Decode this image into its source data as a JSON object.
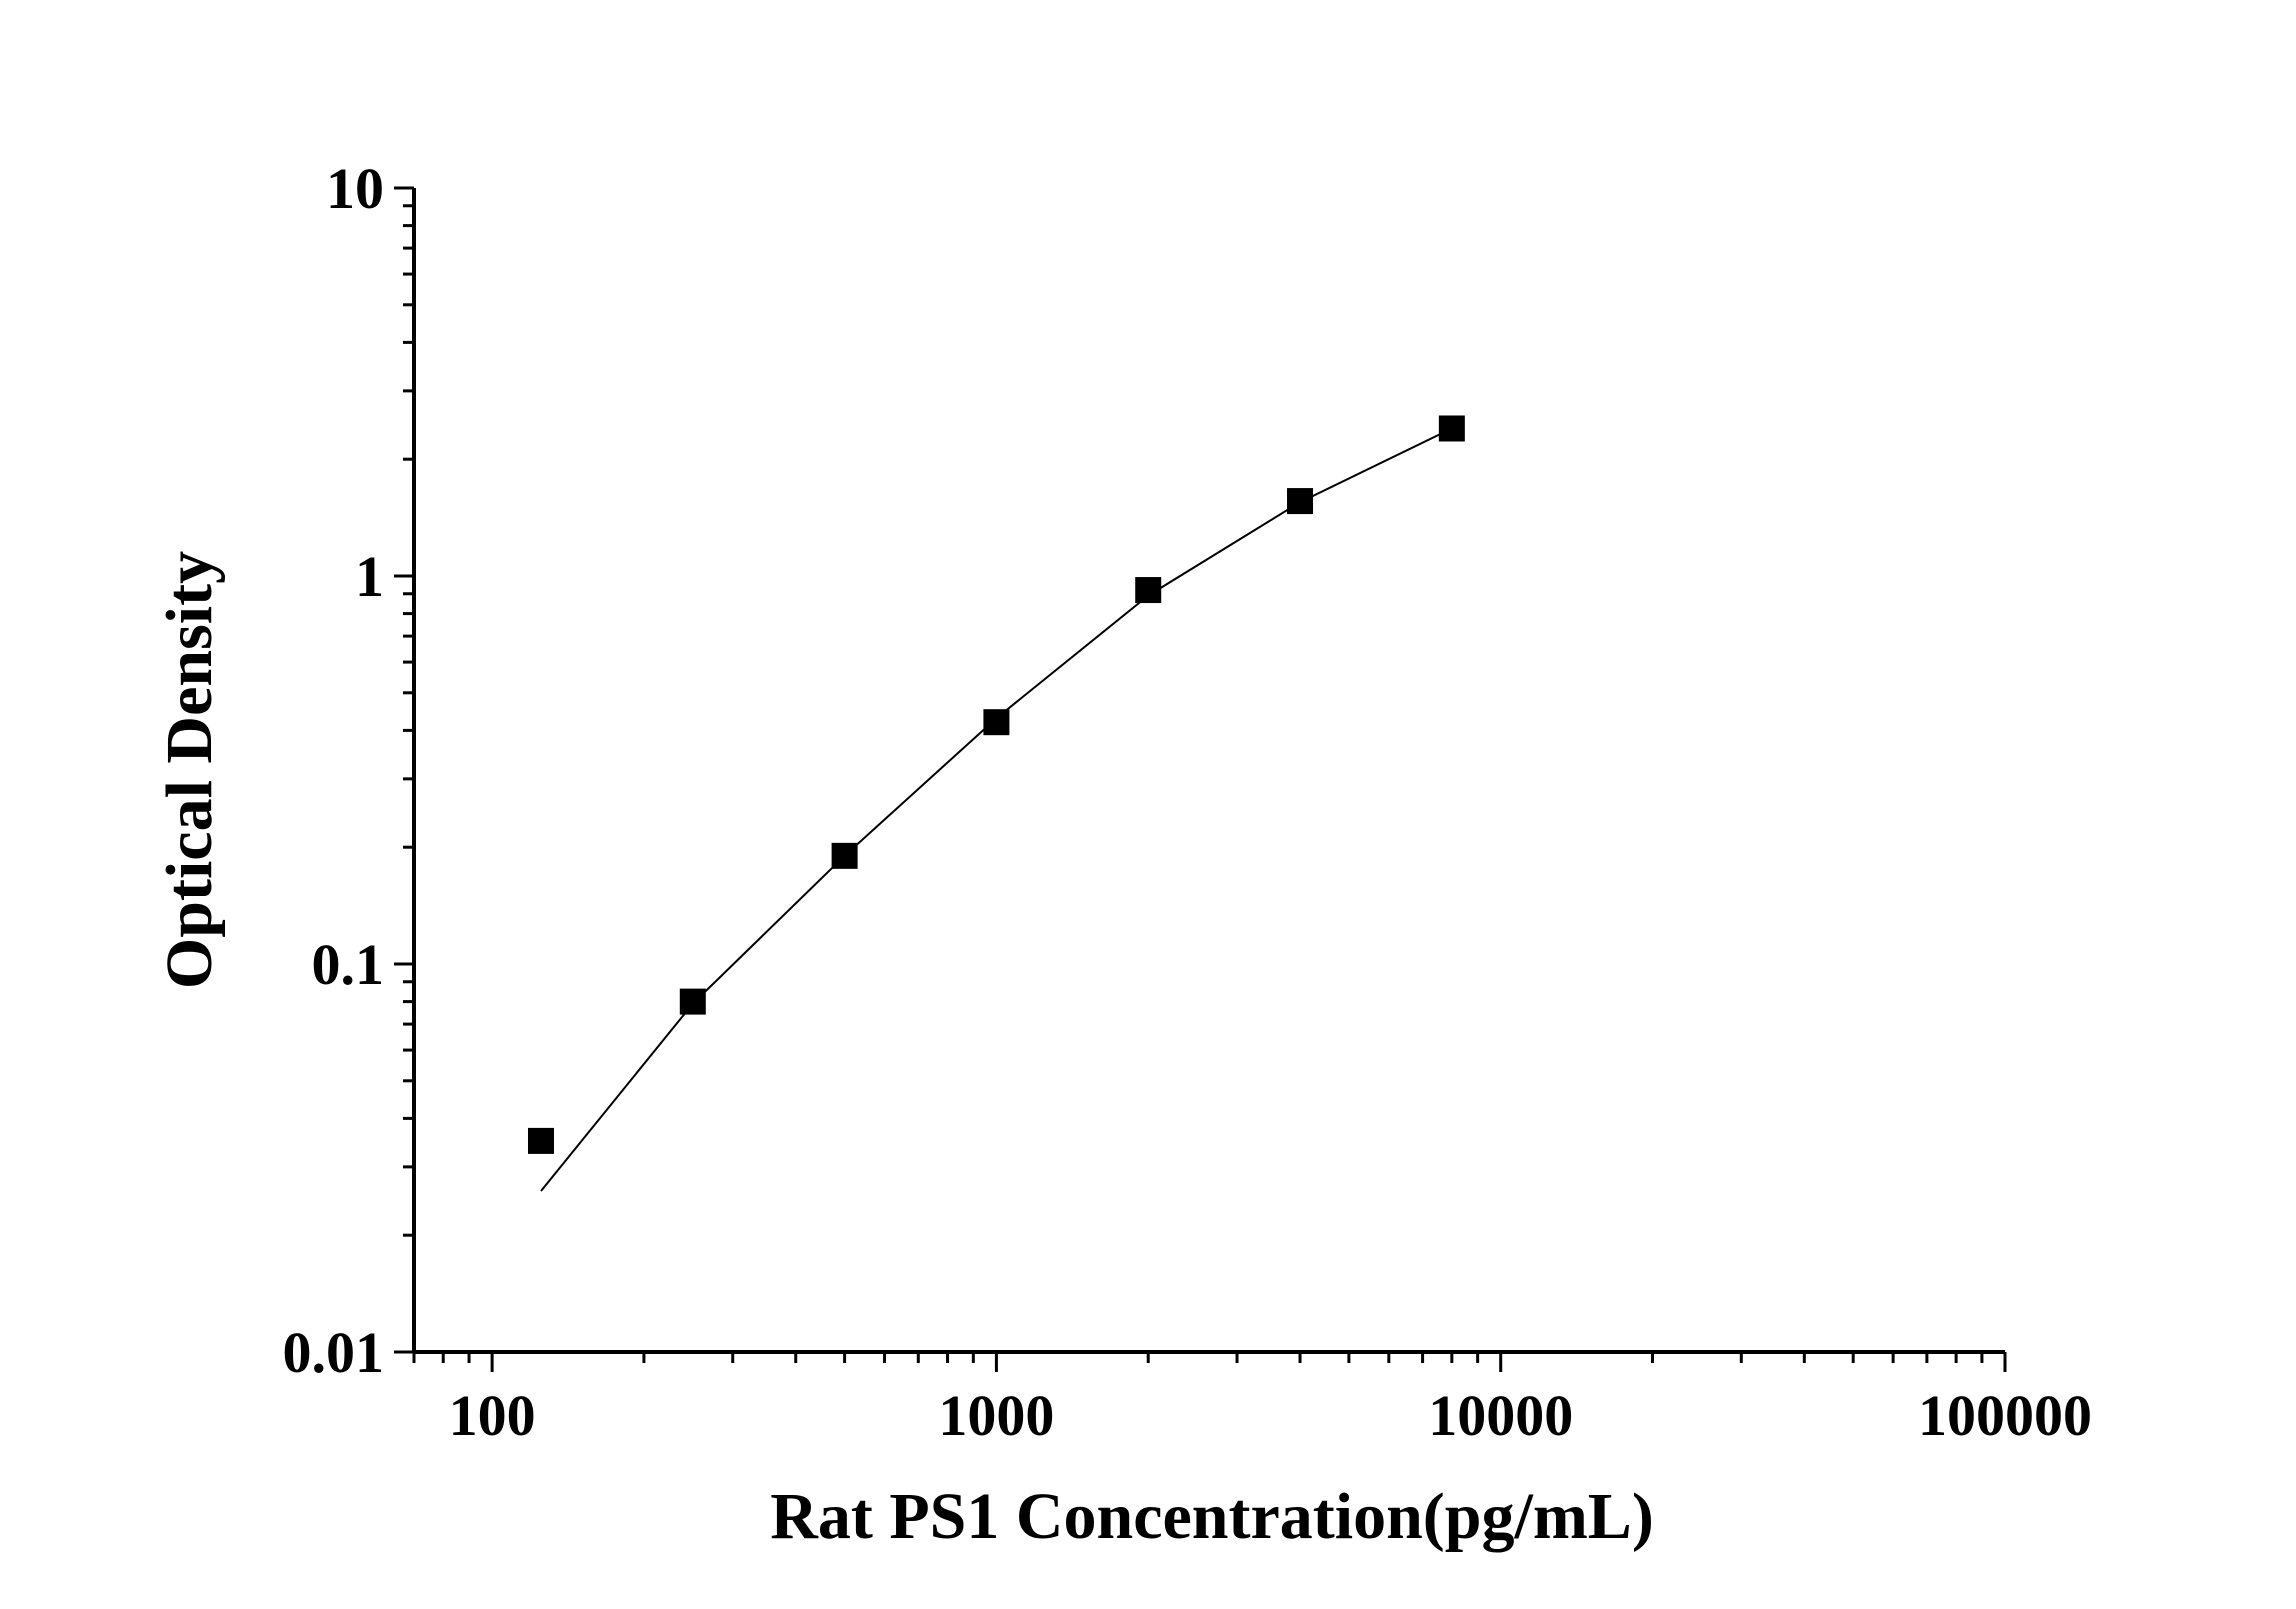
{
  "chart_data": {
    "type": "scatter",
    "title": "",
    "xlabel": "Rat PS1 Concentration(pg/mL)",
    "ylabel": "Optical Density",
    "x_scale": "log",
    "y_scale": "log",
    "xlim": [
      70,
      100000
    ],
    "ylim": [
      0.01,
      10
    ],
    "x_tick_labels": [
      "100",
      "1000",
      "10000",
      "100000"
    ],
    "y_tick_labels": [
      "0.01",
      "0.1",
      "1",
      "10"
    ],
    "grid": false,
    "legend": "none",
    "series": [
      {
        "x": [
          125,
          250,
          500,
          1000,
          2000,
          4000,
          8000
        ],
        "y": [
          0.035,
          0.08,
          0.19,
          0.42,
          0.92,
          1.56,
          2.4
        ]
      }
    ],
    "fit_curve": {
      "x": [
        125,
        250,
        500,
        1000,
        2000,
        4000,
        8000
      ],
      "y": [
        0.026,
        0.079,
        0.19,
        0.43,
        0.89,
        1.55,
        2.4
      ]
    },
    "colors": {
      "marker": "#000000",
      "line": "#000000",
      "axis": "#000000"
    }
  }
}
